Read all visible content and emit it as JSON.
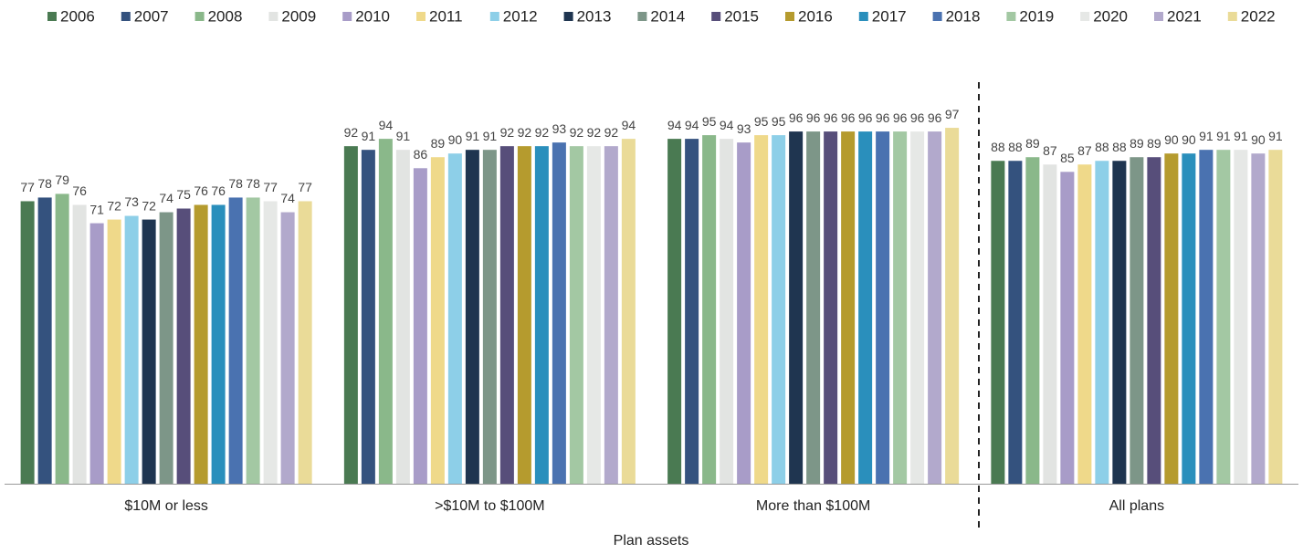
{
  "chart_data": {
    "type": "bar",
    "x_label": "Plan assets",
    "categories": [
      "$10M or less",
      ">$10M to $100M",
      "More than $100M",
      "All plans"
    ],
    "ylim": [
      0,
      100
    ],
    "series": [
      {
        "name": "2006",
        "color": "#4a7a52",
        "values": [
          77,
          92,
          94,
          88
        ]
      },
      {
        "name": "2007",
        "color": "#34527e",
        "values": [
          78,
          91,
          94,
          88
        ]
      },
      {
        "name": "2008",
        "color": "#8ab88a",
        "values": [
          79,
          94,
          95,
          89
        ]
      },
      {
        "name": "2009",
        "color": "#e2e4e2",
        "values": [
          76,
          91,
          94,
          87
        ]
      },
      {
        "name": "2010",
        "color": "#a89cc8",
        "values": [
          71,
          86,
          93,
          85
        ]
      },
      {
        "name": "2011",
        "color": "#efd98a",
        "values": [
          72,
          89,
          95,
          87
        ]
      },
      {
        "name": "2012",
        "color": "#8dcfe8",
        "values": [
          73,
          90,
          95,
          88
        ]
      },
      {
        "name": "2013",
        "color": "#1f3550",
        "values": [
          72,
          91,
          96,
          88
        ]
      },
      {
        "name": "2014",
        "color": "#7d9688",
        "values": [
          74,
          91,
          96,
          89
        ]
      },
      {
        "name": "2015",
        "color": "#574e7a",
        "values": [
          75,
          92,
          96,
          89
        ]
      },
      {
        "name": "2016",
        "color": "#b59b2e",
        "values": [
          76,
          92,
          96,
          90
        ]
      },
      {
        "name": "2017",
        "color": "#2a8fbc",
        "values": [
          76,
          92,
          96,
          90
        ]
      },
      {
        "name": "2018",
        "color": "#4a72b0",
        "values": [
          78,
          93,
          96,
          91
        ]
      },
      {
        "name": "2019",
        "color": "#a3c8a3",
        "values": [
          78,
          92,
          96,
          91
        ]
      },
      {
        "name": "2020",
        "color": "#e6e8e6",
        "values": [
          77,
          92,
          96,
          91
        ]
      },
      {
        "name": "2021",
        "color": "#b2a9cc",
        "values": [
          74,
          92,
          96,
          90
        ]
      },
      {
        "name": "2022",
        "color": "#eadb98",
        "values": [
          77,
          94,
          97,
          91
        ]
      }
    ]
  }
}
